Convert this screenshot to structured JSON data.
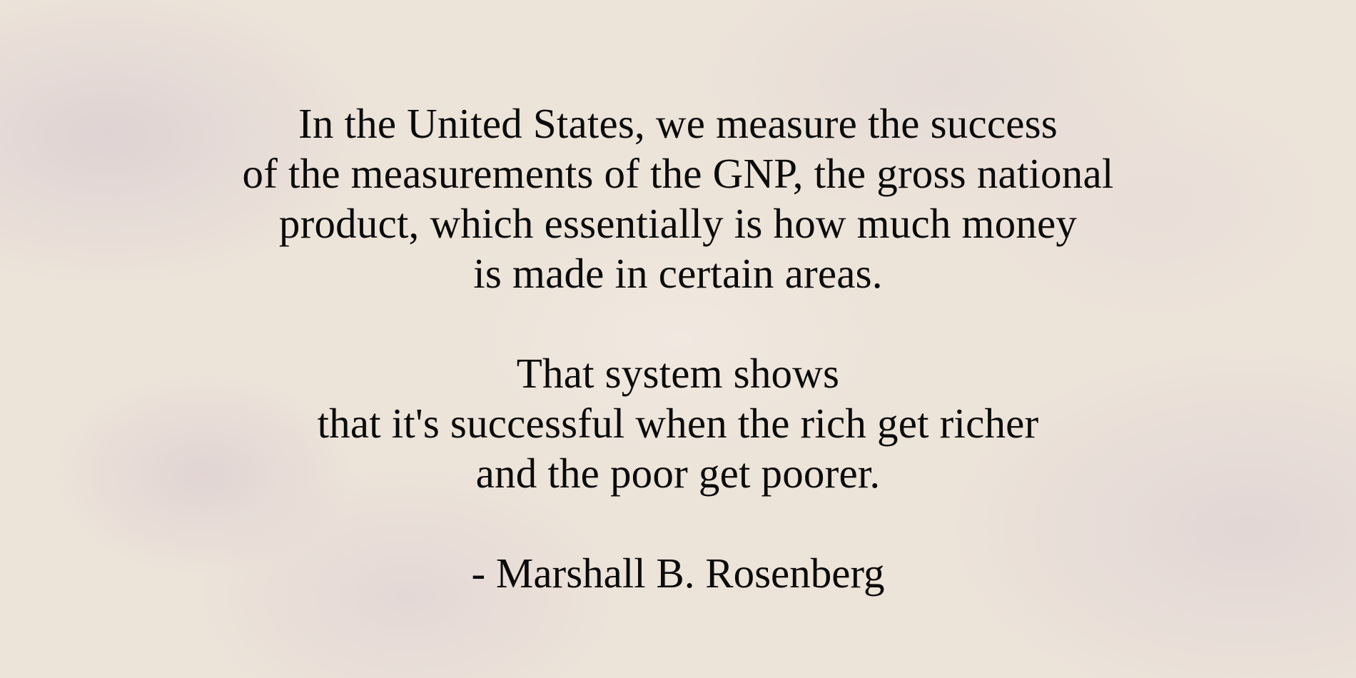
{
  "quote": {
    "paragraph_1": [
      "In the United States, we measure the success",
      "of the measurements of the GNP, the gross national",
      "product, which essentially is how much money",
      "is made in certain areas."
    ],
    "paragraph_2": [
      "That system shows",
      "that it's successful when the rich get richer",
      "and the poor get poorer."
    ],
    "attribution": "- Marshall B. Rosenberg"
  },
  "colors": {
    "background": "#ece3d9",
    "text": "#0b0b0b"
  }
}
